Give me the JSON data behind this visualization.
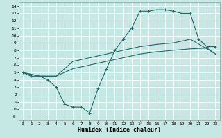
{
  "xlabel": "Humidex (Indice chaleur)",
  "bg_color": "#c5e8e5",
  "grid_color": "#ffffff",
  "line_color": "#1a6b6b",
  "xlim": [
    -0.5,
    23.5
  ],
  "ylim": [
    -1.5,
    14.5
  ],
  "xticks": [
    0,
    1,
    2,
    3,
    4,
    5,
    6,
    7,
    8,
    9,
    10,
    11,
    12,
    13,
    14,
    15,
    16,
    17,
    18,
    19,
    20,
    21,
    22,
    23
  ],
  "yticks": [
    -1,
    0,
    1,
    2,
    3,
    4,
    5,
    6,
    7,
    8,
    9,
    10,
    11,
    12,
    13,
    14
  ],
  "ytick_labels": [
    "-0",
    "0",
    "1",
    "2",
    "3",
    "4",
    "5",
    "6",
    "7",
    "8",
    "9",
    "10",
    "11",
    "12",
    "13",
    "14"
  ],
  "line1_x": [
    0,
    1,
    2,
    3,
    4,
    5,
    6,
    7,
    8,
    9,
    10,
    11,
    12,
    13,
    14,
    15,
    16,
    17,
    18,
    19,
    20,
    21,
    22,
    23
  ],
  "line1_y": [
    5.0,
    4.5,
    4.5,
    4.0,
    3.0,
    0.7,
    0.3,
    0.3,
    -0.5,
    2.8,
    5.5,
    8.0,
    9.5,
    11.0,
    13.3,
    13.3,
    13.5,
    13.5,
    13.3,
    13.0,
    13.0,
    9.5,
    8.5,
    8.5
  ],
  "line2_x": [
    0,
    2,
    4,
    6,
    8,
    10,
    12,
    14,
    16,
    18,
    20,
    22,
    23
  ],
  "line2_y": [
    5.0,
    4.5,
    4.5,
    5.5,
    6.0,
    6.5,
    7.0,
    7.5,
    7.8,
    8.0,
    8.2,
    8.3,
    7.5
  ],
  "line3_x": [
    0,
    2,
    4,
    6,
    8,
    10,
    12,
    14,
    16,
    18,
    20,
    22,
    23
  ],
  "line3_y": [
    5.0,
    4.5,
    4.5,
    6.5,
    7.0,
    7.5,
    8.0,
    8.5,
    8.8,
    9.0,
    9.5,
    8.2,
    7.5
  ]
}
